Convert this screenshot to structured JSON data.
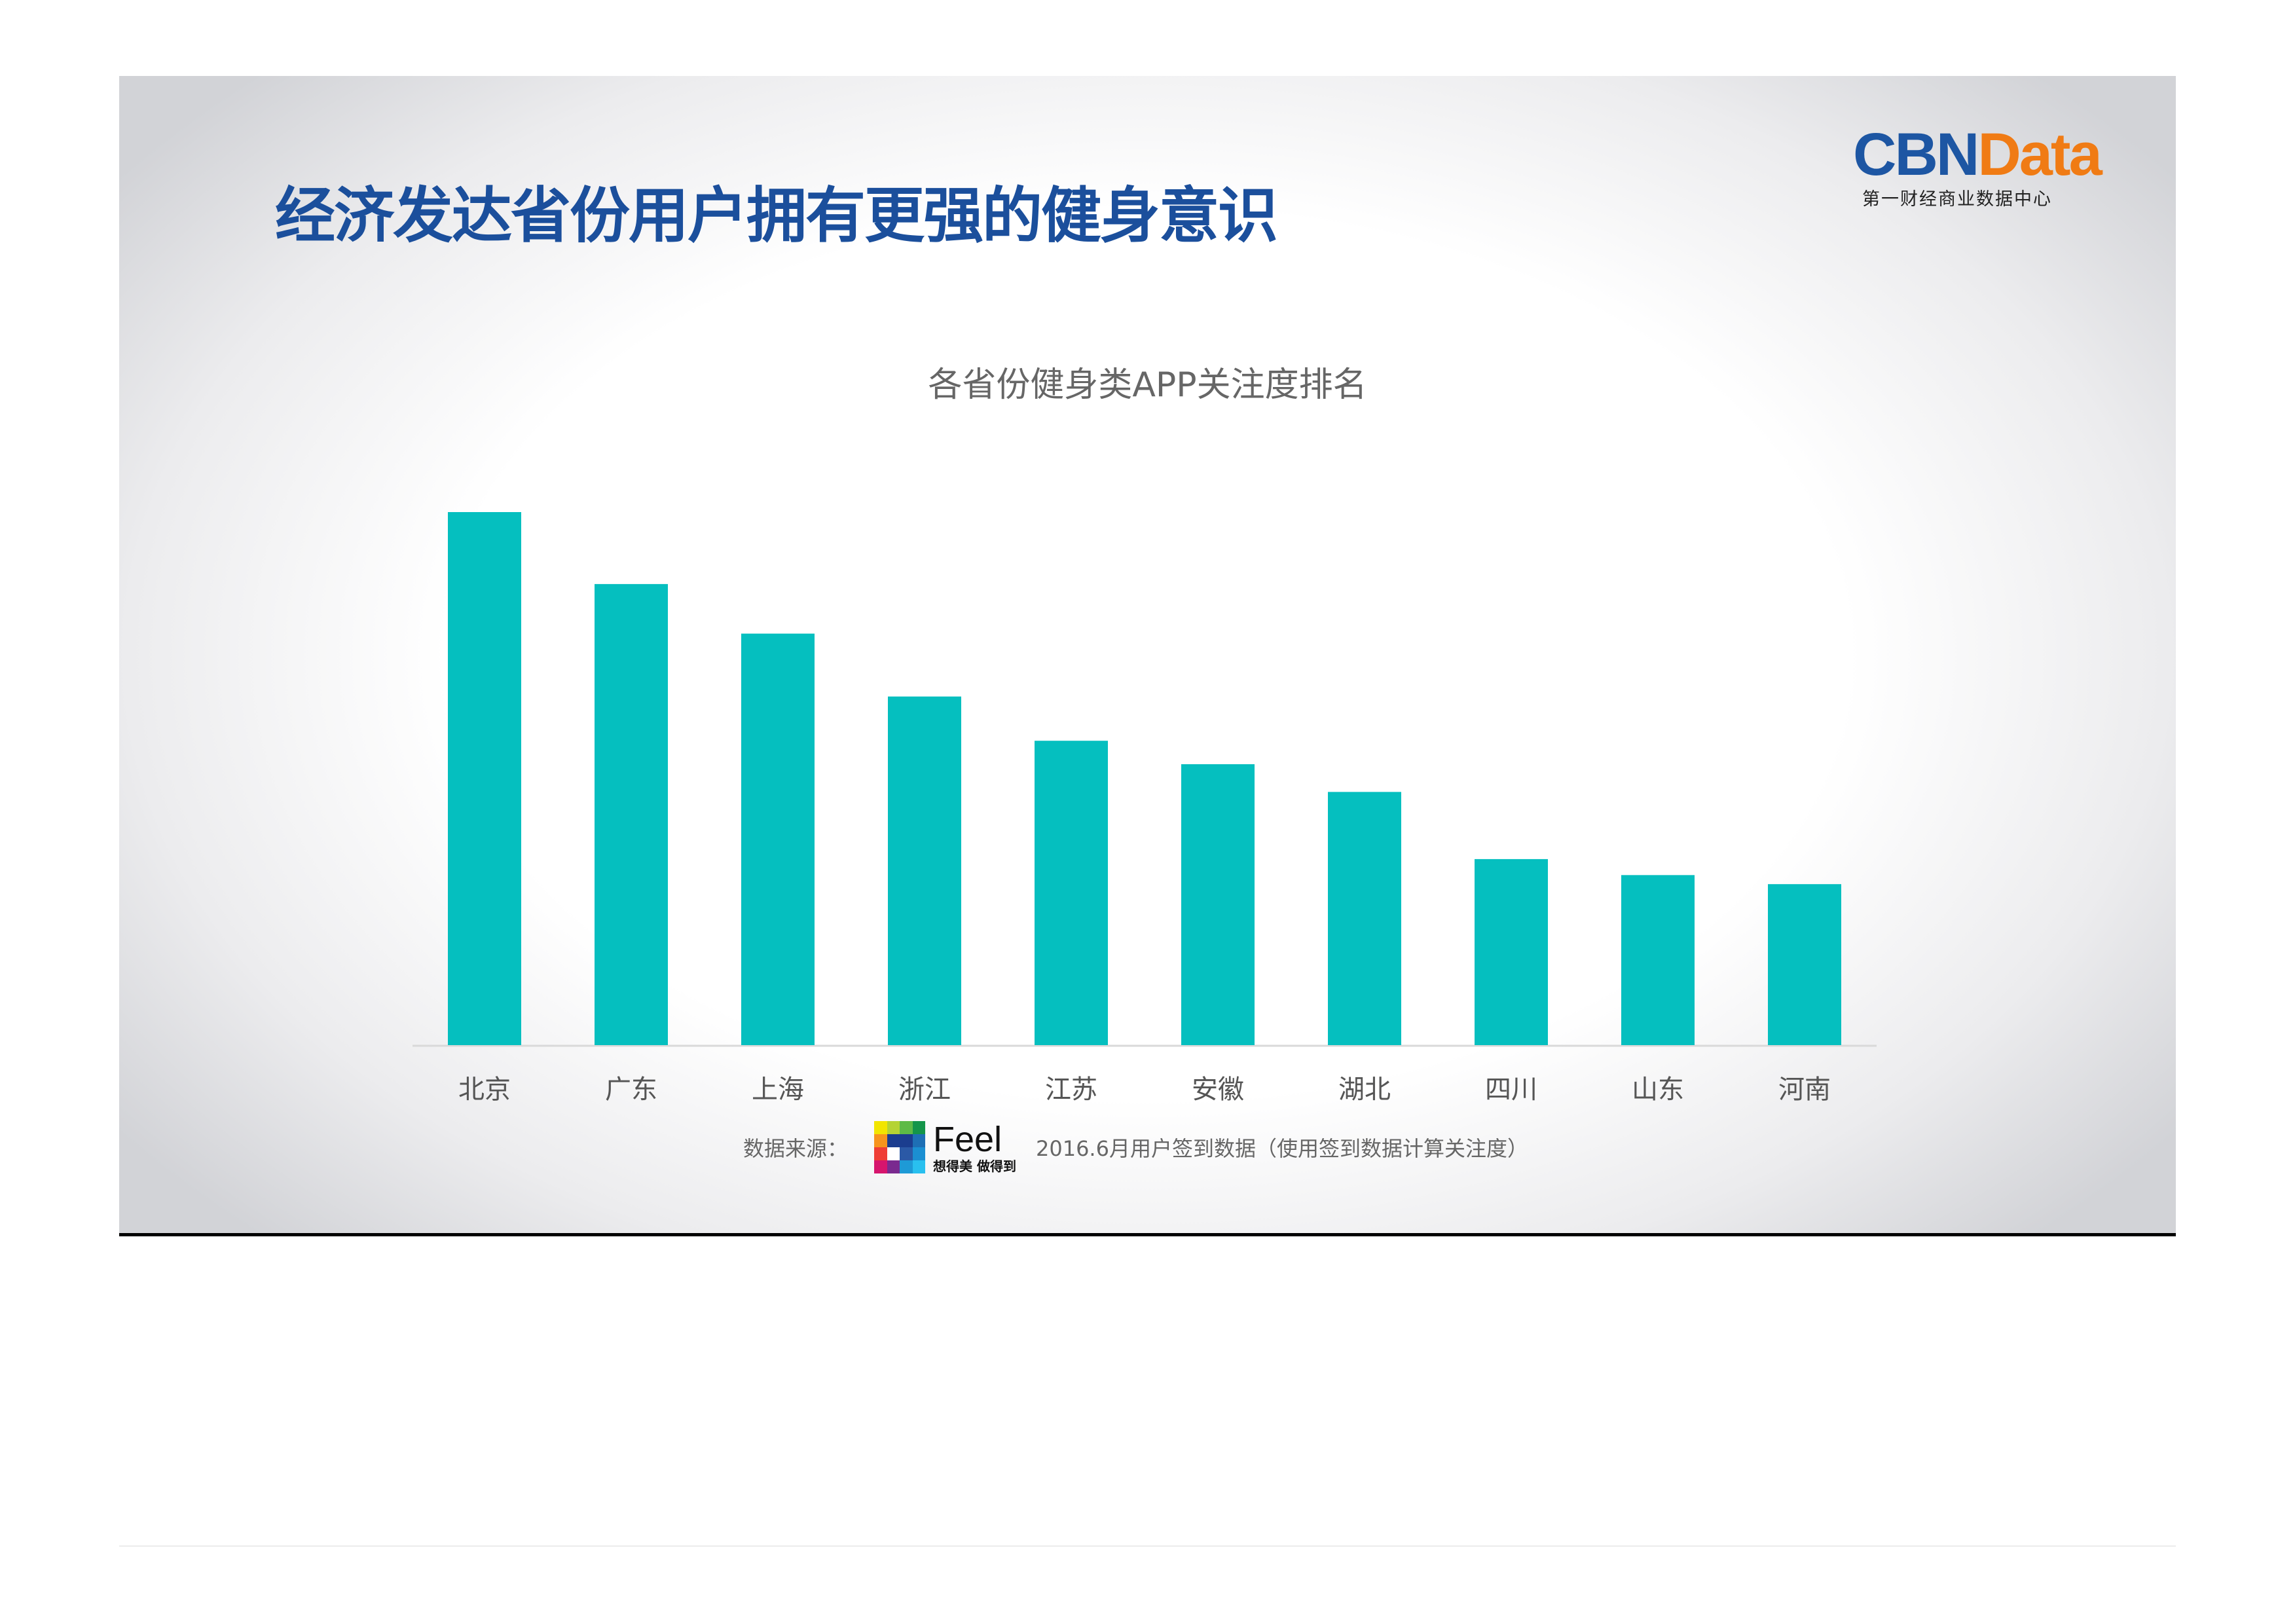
{
  "header": {
    "title": "经济发达省份用户拥有更强的健身意识"
  },
  "logo": {
    "brand_part1": "CBN",
    "brand_part2": "Data",
    "subtitle": "第一财经商业数据中心",
    "colors": {
      "blue": "#1d56a3",
      "orange": "#f07b14"
    }
  },
  "chart_data": {
    "type": "bar",
    "title": "各省份健身类APP关注度排名",
    "categories": [
      "北京",
      "广东",
      "上海",
      "浙江",
      "江苏",
      "安徽",
      "湖北",
      "四川",
      "山东",
      "河南"
    ],
    "values": [
      100,
      86.5,
      77.2,
      65.4,
      57.1,
      52.7,
      47.5,
      34.9,
      31.9,
      30.2
    ],
    "value_note_unit": "relative (no axis shown)",
    "ylim": [
      0,
      100
    ],
    "xlabel": "",
    "ylabel": "",
    "grid": false,
    "bar_color": "#05bfbf"
  },
  "source": {
    "label": "数据来源：",
    "brand": "Feel",
    "brand_slogan": "想得美 做得到",
    "description": "2016.6月用户签到数据（使用签到数据计算关注度）"
  }
}
